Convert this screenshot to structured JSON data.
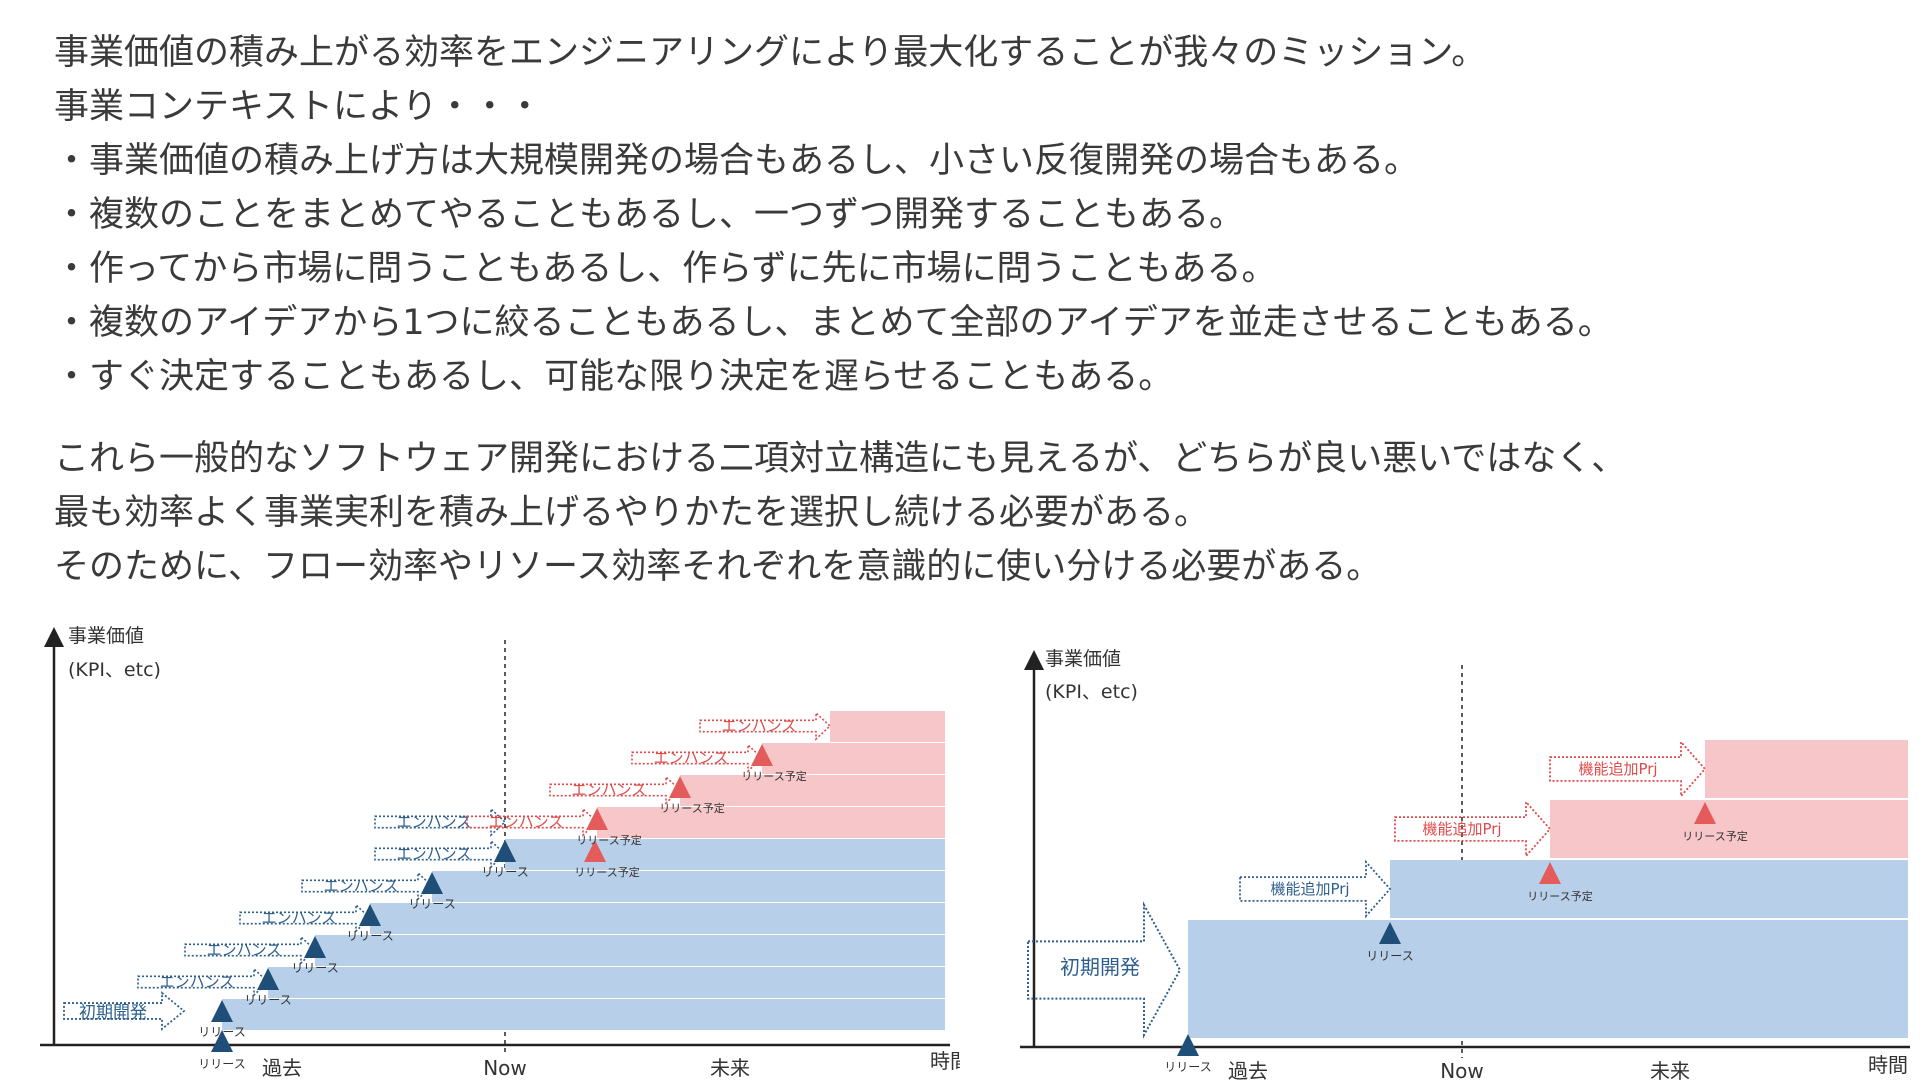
{
  "intro": {
    "lines": [
      "事業価値の積み上がる効率をエンジニアリングにより最大化することが我々のミッション。",
      "事業コンテキストにより・・・",
      "・事業価値の積み上げ方は大規模開発の場合もあるし、小さい反復開発の場合もある。",
      "・複数のことをまとめてやることもあるし、一つずつ開発することもある。",
      "・作ってから市場に問うこともあるし、作らずに先に市場に問うこともある。",
      "・複数のアイデアから1つに絞ることもあるし、まとめて全部のアイデアを並走させることもある。",
      "・すぐ決定することもあるし、可能な限り決定を遅らせることもある。"
    ]
  },
  "conclusion": {
    "lines": [
      "これら一般的なソフトウェア開発における二項対立構造にも見えるが、どちらが良い悪いではなく、",
      "最も効率よく事業実利を積み上げるやりかたを選択し続ける必要がある。",
      "そのために、フロー効率やリソース効率それぞれを意識的に使い分ける必要がある。"
    ]
  },
  "colors": {
    "past_block": "#b8cfe9",
    "future_block": "#f7c6c8",
    "release_marker": "#1f4e79",
    "planned_marker": "#e35b5b",
    "past_arrow": "#2e5f8f",
    "future_arrow": "#e04a4a"
  },
  "diagram_left": {
    "ylabel_line1": "事業価値",
    "ylabel_line2": "(KPI、etc)",
    "x_label_past": "過去",
    "x_label_now": "Now",
    "x_label_future": "未来",
    "x_axis_label": "時間",
    "initial_label": "初期開発",
    "past_steps": [
      {
        "arrow_label": "初期開発",
        "marker_label": "リリース"
      },
      {
        "arrow_label": "エンハンス",
        "marker_label": "リリース"
      },
      {
        "arrow_label": "エンハンス",
        "marker_label": "リリース"
      },
      {
        "arrow_label": "エンハンス",
        "marker_label": "リリース"
      },
      {
        "arrow_label": "エンハンス",
        "marker_label": "リリース"
      },
      {
        "arrow_label": "エンハンス",
        "marker_label": "リリース"
      },
      {
        "arrow_label": "エンハンス",
        "marker_label": "リリース"
      }
    ],
    "future_steps": [
      {
        "arrow_label": "エンハンス",
        "marker_label": "リリース予定"
      },
      {
        "arrow_label": "エンハンス",
        "marker_label": "リリース予定"
      },
      {
        "arrow_label": "エンハンス",
        "marker_label": "リリース予定"
      },
      {
        "arrow_label": "エンハンス",
        "marker_label": "リリース予定"
      }
    ]
  },
  "diagram_right": {
    "ylabel_line1": "事業価値",
    "ylabel_line2": "(KPI、etc)",
    "x_label_past": "過去",
    "x_label_now": "Now",
    "x_label_future": "未来",
    "x_axis_label": "時間",
    "initial_label": "初期開発",
    "initial_marker_label": "リリース",
    "past_arrow_label": "機能追加Prj",
    "past_marker_label": "リリース",
    "future_arrow_1_label": "機能追加Prj",
    "future_marker_1_label": "リリース予定",
    "future_arrow_2_label": "機能追加Prj",
    "future_marker_2_label": "リリース予定"
  }
}
